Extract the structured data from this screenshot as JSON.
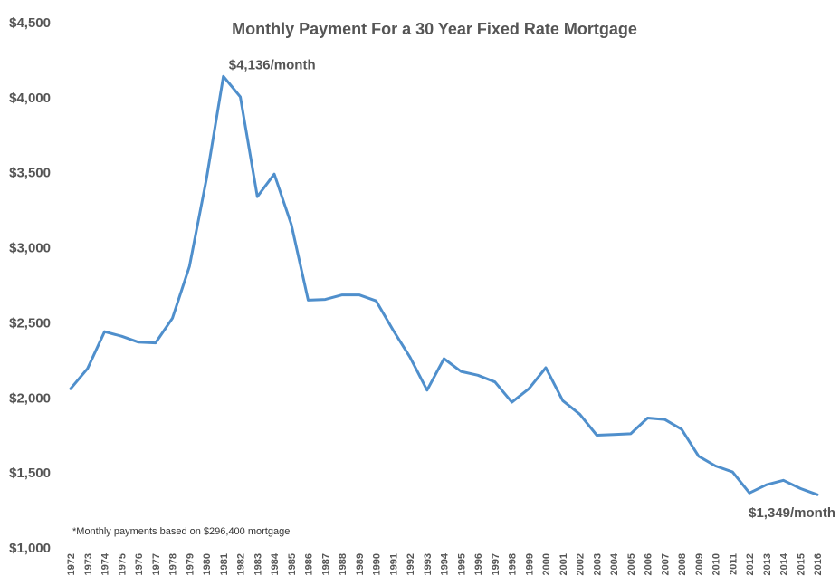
{
  "chart_data": {
    "type": "line",
    "title": "Monthly Payment For a 30 Year Fixed Rate Mortgage",
    "xlabel": "",
    "ylabel": "",
    "ylim": [
      1000,
      4500
    ],
    "yticks": [
      1000,
      1500,
      2000,
      2500,
      3000,
      3500,
      4000,
      4500
    ],
    "ytick_labels": [
      "$1,000",
      "$1,500",
      "$2,000",
      "$2,500",
      "$3,000",
      "$3,500",
      "$4,000",
      "$4,500"
    ],
    "grid": false,
    "line_color": "#4f8fcc",
    "x": [
      "1972",
      "1973",
      "1974",
      "1975",
      "1976",
      "1977",
      "1978",
      "1979",
      "1980",
      "1981",
      "1982",
      "1983",
      "1984",
      "1985",
      "1986",
      "1987",
      "1988",
      "1989",
      "1990",
      "1991",
      "1992",
      "1993",
      "1994",
      "1995",
      "1996",
      "1997",
      "1998",
      "1999",
      "2000",
      "2001",
      "2002",
      "2003",
      "2004",
      "2005",
      "2006",
      "2007",
      "2008",
      "2009",
      "2010",
      "2011",
      "2012",
      "2013",
      "2014",
      "2015",
      "2016"
    ],
    "series": [
      {
        "values": [
          2055,
          2190,
          2435,
          2405,
          2365,
          2360,
          2525,
          2870,
          3450,
          4136,
          4000,
          3335,
          3485,
          3150,
          2645,
          2650,
          2680,
          2680,
          2640,
          2445,
          2265,
          2045,
          2255,
          2170,
          2145,
          2100,
          1965,
          2055,
          2195,
          1975,
          1885,
          1745,
          1750,
          1755,
          1860,
          1850,
          1785,
          1605,
          1540,
          1500,
          1360,
          1415,
          1445,
          1390,
          1349
        ]
      }
    ],
    "annotations": [
      {
        "text": "$4,136/month",
        "x": "1981",
        "y": 4136
      },
      {
        "text": "$1,349/month",
        "x": "2016",
        "y": 1349
      }
    ],
    "footnote": "*Monthly payments based on $296,400 mortgage"
  }
}
